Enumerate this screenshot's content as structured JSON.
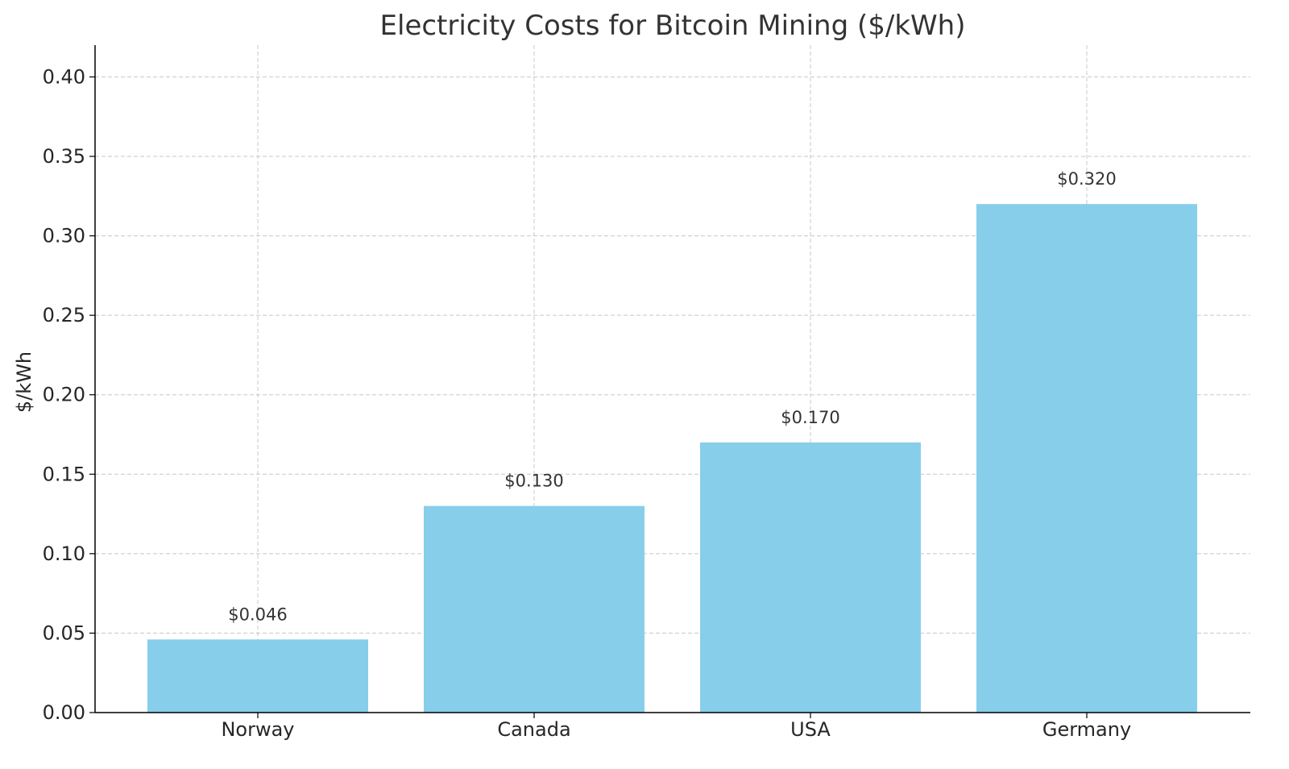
{
  "chart_data": {
    "type": "bar",
    "title": "Electricity Costs for Bitcoin Mining ($/kWh)",
    "xlabel": "",
    "ylabel": "$/kWh",
    "categories": [
      "Norway",
      "Canada",
      "USA",
      "Germany"
    ],
    "values": [
      0.046,
      0.13,
      0.17,
      0.32
    ],
    "data_labels": [
      "$0.046",
      "$0.130",
      "$0.170",
      "$0.320"
    ],
    "yticks": [
      "0.00",
      "0.05",
      "0.10",
      "0.15",
      "0.20",
      "0.25",
      "0.30",
      "0.35",
      "0.40"
    ],
    "ylim": [
      0,
      0.42
    ],
    "grid": true,
    "bar_color": "#87ceeb"
  }
}
